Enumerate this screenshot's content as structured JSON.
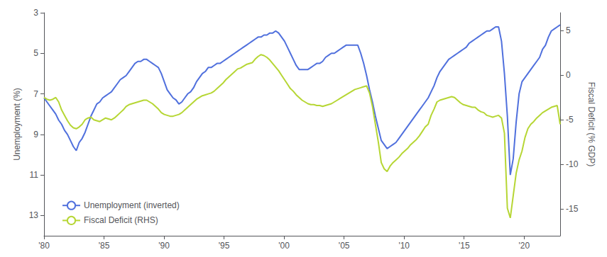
{
  "chart_data": {
    "type": "line",
    "ylabel": "Unemployment (%)",
    "y2label": "Fiscal Deficit (% GDP)",
    "x": [
      1980,
      1980.2443,
      1980.4886,
      1980.733,
      1980.9773,
      1981.2216,
      1981.4659,
      1981.7102,
      1981.9545,
      1982.1989,
      1982.4432,
      1982.6875,
      1982.9318,
      1983.1761,
      1983.4205,
      1983.6648,
      1983.9091,
      1984.1534,
      1984.3977,
      1984.642,
      1984.8864,
      1985.1307,
      1985.375,
      1985.6193,
      1985.8636,
      1986.108,
      1986.3523,
      1986.5966,
      1986.8409,
      1987.0852,
      1987.3295,
      1987.5739,
      1987.8182,
      1988.0625,
      1988.3068,
      1988.5511,
      1988.7955,
      1989.0398,
      1989.2841,
      1989.5284,
      1989.7727,
      1990.017,
      1990.2614,
      1990.5057,
      1990.75,
      1990.9943,
      1991.2386,
      1991.483,
      1991.7273,
      1991.9716,
      1992.2159,
      1992.4602,
      1992.7045,
      1992.9489,
      1993.1932,
      1993.4375,
      1993.6818,
      1993.9261,
      1994.1705,
      1994.4148,
      1994.6591,
      1994.9034,
      1995.1477,
      1995.392,
      1995.6364,
      1995.8807,
      1996.125,
      1996.3693,
      1996.6136,
      1996.858,
      1997.1023,
      1997.3466,
      1997.5909,
      1997.8352,
      1998.0795,
      1998.3239,
      1998.5682,
      1998.8125,
      1999.0568,
      1999.3011,
      1999.5455,
      1999.7898,
      2000.0341,
      2000.2784,
      2000.5227,
      2000.767,
      2001.0114,
      2001.2557,
      2001.5,
      2001.7443,
      2001.9886,
      2002.233,
      2002.4773,
      2002.7216,
      2002.9659,
      2003.2102,
      2003.4545,
      2003.6989,
      2003.9432,
      2004.1875,
      2004.4318,
      2004.6761,
      2004.9205,
      2005.1648,
      2005.4091,
      2005.6534,
      2005.8977,
      2006.142,
      2006.3864,
      2006.6307,
      2006.875,
      2007.1193,
      2007.3636,
      2007.608,
      2007.8523,
      2008.0966,
      2008.3409,
      2008.5852,
      2008.8295,
      2009.0739,
      2009.3182,
      2009.5625,
      2009.8068,
      2010.0511,
      2010.2955,
      2010.5398,
      2010.7841,
      2011.0284,
      2011.2727,
      2011.517,
      2011.7614,
      2012.0057,
      2012.25,
      2012.4943,
      2012.7386,
      2012.983,
      2013.2273,
      2013.4716,
      2013.7159,
      2013.9602,
      2014.2045,
      2014.4489,
      2014.6932,
      2014.9375,
      2015.1818,
      2015.4261,
      2015.6705,
      2015.9148,
      2016.1591,
      2016.4034,
      2016.6477,
      2016.892,
      2017.1364,
      2017.3807,
      2017.625,
      2017.8693,
      2018.1136,
      2018.358,
      2018.6023,
      2018.8466,
      2019.0909,
      2019.3352,
      2019.5795,
      2019.8239,
      2020.0682,
      2020.3125,
      2020.5568,
      2020.8011,
      2021.0455,
      2021.2898,
      2021.5341,
      2021.7784,
      2022.0227,
      2022.267,
      2022.5114,
      2022.7557,
      2023
    ],
    "xlim": [
      1980,
      2023
    ],
    "xticks": [
      {
        "value": 1980,
        "label": "'80"
      },
      {
        "value": 1985,
        "label": "'85"
      },
      {
        "value": 1990,
        "label": "'90"
      },
      {
        "value": 1995,
        "label": "'95"
      },
      {
        "value": 2000,
        "label": "'00"
      },
      {
        "value": 2005,
        "label": "'05"
      },
      {
        "value": 2010,
        "label": "'10"
      },
      {
        "value": 2015,
        "label": "'15"
      },
      {
        "value": 2020,
        "label": "'20"
      }
    ],
    "ylim": [
      14,
      3
    ],
    "yticks": [
      3,
      5,
      7,
      9,
      11,
      13
    ],
    "y2lim": [
      -18,
      7
    ],
    "y2ticks": [
      -15,
      -10,
      -5,
      0,
      5
    ],
    "grid": false,
    "legend": "lower left",
    "series": [
      {
        "name": "Unemployment (inverted)",
        "values": [
          7.2,
          7.4,
          7.6,
          7.8,
          8.0,
          8.3,
          8.5,
          8.8,
          9.0,
          9.3,
          9.6,
          9.8,
          9.4,
          9.2,
          8.9,
          8.5,
          8.1,
          7.8,
          7.5,
          7.4,
          7.2,
          7.1,
          7.0,
          6.9,
          6.7,
          6.5,
          6.3,
          6.2,
          6.1,
          5.9,
          5.7,
          5.5,
          5.4,
          5.4,
          5.3,
          5.3,
          5.4,
          5.5,
          5.6,
          5.7,
          6.0,
          6.4,
          6.8,
          7.0,
          7.2,
          7.3,
          7.5,
          7.4,
          7.2,
          7.0,
          6.9,
          6.7,
          6.4,
          6.2,
          6.0,
          5.9,
          5.7,
          5.7,
          5.6,
          5.5,
          5.5,
          5.4,
          5.3,
          5.2,
          5.1,
          5.0,
          4.9,
          4.8,
          4.7,
          4.6,
          4.5,
          4.4,
          4.3,
          4.2,
          4.2,
          4.1,
          4.1,
          4.0,
          4.0,
          3.9,
          4.0,
          4.2,
          4.4,
          4.7,
          5.0,
          5.3,
          5.6,
          5.8,
          5.8,
          5.8,
          5.8,
          5.7,
          5.6,
          5.5,
          5.5,
          5.4,
          5.2,
          5.1,
          5.0,
          5.0,
          4.9,
          4.8,
          4.7,
          4.6,
          4.6,
          4.6,
          4.6,
          4.6,
          5.0,
          5.5,
          6.1,
          6.8,
          7.4,
          8.1,
          8.7,
          9.3,
          9.5,
          9.7,
          9.6,
          9.5,
          9.4,
          9.2,
          9.0,
          8.8,
          8.6,
          8.4,
          8.2,
          8.0,
          7.8,
          7.6,
          7.4,
          7.2,
          6.9,
          6.6,
          6.2,
          5.9,
          5.7,
          5.5,
          5.3,
          5.2,
          5.1,
          5.0,
          4.9,
          4.8,
          4.7,
          4.5,
          4.4,
          4.3,
          4.2,
          4.1,
          4.0,
          3.9,
          3.9,
          3.8,
          3.7,
          3.7,
          4.4,
          6.0,
          8.1,
          11.0,
          10.2,
          8.4,
          7.0,
          6.4,
          6.2,
          6.0,
          5.8,
          5.6,
          5.4,
          5.2,
          4.8,
          4.6,
          4.2,
          3.9,
          3.8,
          3.7,
          3.6
        ]
      },
      {
        "name": "Fiscal Deficit (RHS)",
        "axis": "y2",
        "values": [
          -2.5,
          -2.7,
          -2.8,
          -2.7,
          -2.5,
          -3.0,
          -3.9,
          -4.5,
          -5.1,
          -5.6,
          -5.9,
          -6.0,
          -5.8,
          -5.5,
          -5.0,
          -4.8,
          -4.7,
          -5.0,
          -5.1,
          -5.2,
          -5.0,
          -4.8,
          -4.9,
          -5.0,
          -4.8,
          -4.5,
          -4.2,
          -3.9,
          -3.5,
          -3.3,
          -3.2,
          -3.1,
          -3.0,
          -2.9,
          -2.8,
          -2.8,
          -3.0,
          -3.2,
          -3.5,
          -3.8,
          -4.2,
          -4.4,
          -4.5,
          -4.6,
          -4.6,
          -4.5,
          -4.4,
          -4.2,
          -3.9,
          -3.6,
          -3.3,
          -3.0,
          -2.7,
          -2.5,
          -2.3,
          -2.2,
          -2.1,
          -2.0,
          -1.8,
          -1.5,
          -1.2,
          -0.9,
          -0.5,
          -0.2,
          0.1,
          0.4,
          0.7,
          0.8,
          1.0,
          1.2,
          1.3,
          1.4,
          1.8,
          2.1,
          2.3,
          2.2,
          2.0,
          1.7,
          1.3,
          0.9,
          0.5,
          0.0,
          -0.5,
          -1.0,
          -1.5,
          -1.8,
          -2.2,
          -2.5,
          -2.8,
          -3.0,
          -3.2,
          -3.3,
          -3.3,
          -3.4,
          -3.4,
          -3.5,
          -3.4,
          -3.3,
          -3.2,
          -3.0,
          -2.8,
          -2.6,
          -2.4,
          -2.2,
          -2.0,
          -1.8,
          -1.6,
          -1.5,
          -1.4,
          -1.3,
          -1.2,
          -2.0,
          -3.5,
          -5.5,
          -7.5,
          -9.8,
          -10.5,
          -10.8,
          -10.2,
          -9.8,
          -9.5,
          -9.2,
          -8.8,
          -8.5,
          -8.2,
          -7.8,
          -7.5,
          -7.2,
          -6.8,
          -6.3,
          -5.8,
          -5.5,
          -4.5,
          -3.8,
          -3.0,
          -2.8,
          -2.7,
          -2.6,
          -2.5,
          -2.4,
          -2.5,
          -2.8,
          -3.1,
          -3.3,
          -3.4,
          -3.5,
          -3.6,
          -3.6,
          -3.9,
          -4.1,
          -4.2,
          -4.5,
          -4.6,
          -4.7,
          -4.6,
          -4.5,
          -4.8,
          -6.5,
          -14.9,
          -16.0,
          -13.5,
          -11.0,
          -9.5,
          -8.5,
          -7.0,
          -6.0,
          -5.5,
          -5.2,
          -4.8,
          -4.5,
          -4.2,
          -4.0,
          -3.8,
          -3.6,
          -3.5,
          -3.4,
          -5.5
        ]
      }
    ]
  }
}
